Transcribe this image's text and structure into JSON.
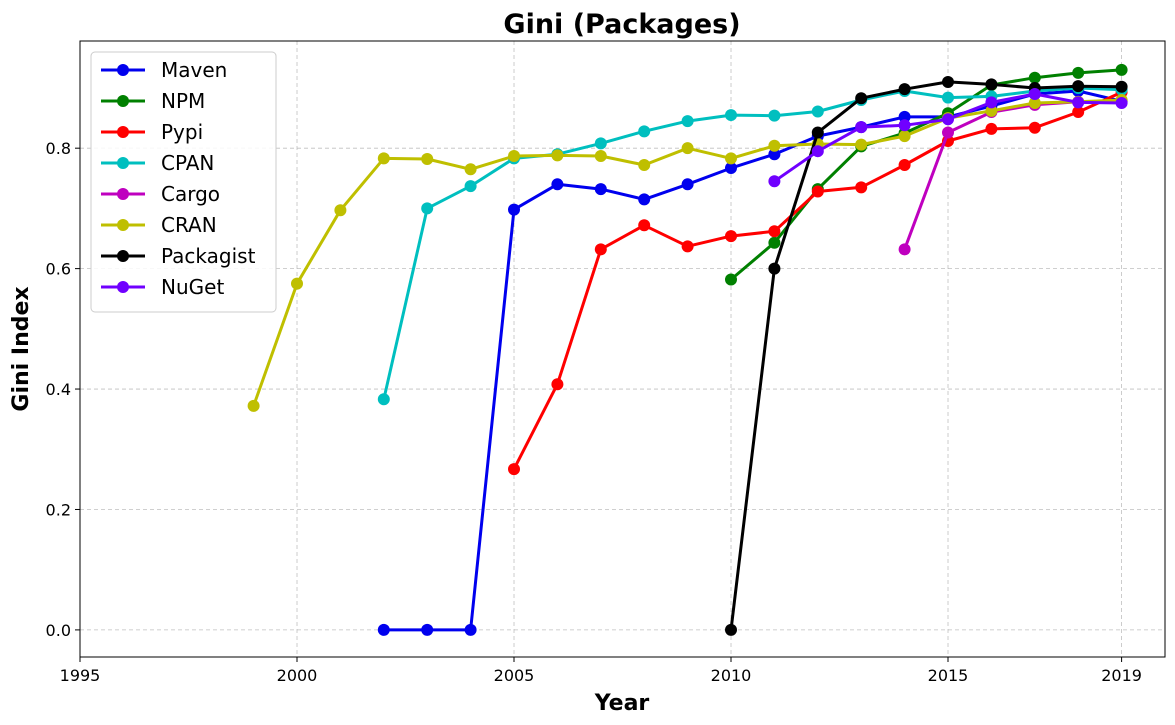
{
  "chart_data": {
    "type": "line",
    "title": "Gini (Packages)",
    "xlabel": "Year",
    "ylabel": "Gini Index",
    "xlim": [
      1995,
      2020
    ],
    "ylim": [
      -0.045,
      0.978
    ],
    "xticks": [
      1995,
      2000,
      2005,
      2010,
      2015,
      2019
    ],
    "yticks": [
      0.0,
      0.2,
      0.4,
      0.6,
      0.8
    ],
    "grid": true,
    "legend_position": "upper-left",
    "series": [
      {
        "name": "Maven",
        "color": "#0000ee",
        "points": [
          [
            2002,
            0.0
          ],
          [
            2003,
            0.0
          ],
          [
            2004,
            0.0
          ],
          [
            2005,
            0.698
          ],
          [
            2006,
            0.74
          ],
          [
            2007,
            0.732
          ],
          [
            2008,
            0.715
          ],
          [
            2009,
            0.74
          ],
          [
            2010,
            0.767
          ],
          [
            2011,
            0.79
          ],
          [
            2012,
            0.82
          ],
          [
            2013,
            0.835
          ],
          [
            2014,
            0.852
          ],
          [
            2015,
            0.852
          ],
          [
            2016,
            0.87
          ],
          [
            2017,
            0.89
          ],
          [
            2018,
            0.895
          ],
          [
            2019,
            0.878
          ]
        ]
      },
      {
        "name": "NPM",
        "color": "#008000",
        "points": [
          [
            2010,
            0.582
          ],
          [
            2011,
            0.643
          ],
          [
            2012,
            0.732
          ],
          [
            2013,
            0.803
          ],
          [
            2014,
            0.825
          ],
          [
            2015,
            0.858
          ],
          [
            2016,
            0.905
          ],
          [
            2017,
            0.917
          ],
          [
            2018,
            0.925
          ],
          [
            2019,
            0.93
          ]
        ]
      },
      {
        "name": "Pypi",
        "color": "#ff0000",
        "points": [
          [
            2005,
            0.267
          ],
          [
            2006,
            0.408
          ],
          [
            2007,
            0.632
          ],
          [
            2008,
            0.672
          ],
          [
            2009,
            0.637
          ],
          [
            2010,
            0.654
          ],
          [
            2011,
            0.662
          ],
          [
            2012,
            0.728
          ],
          [
            2013,
            0.735
          ],
          [
            2014,
            0.772
          ],
          [
            2015,
            0.812
          ],
          [
            2016,
            0.832
          ],
          [
            2017,
            0.834
          ],
          [
            2018,
            0.86
          ],
          [
            2019,
            0.893
          ]
        ]
      },
      {
        "name": "CPAN",
        "color": "#00bfbf",
        "points": [
          [
            2002,
            0.383
          ],
          [
            2003,
            0.7
          ],
          [
            2004,
            0.737
          ],
          [
            2005,
            0.783
          ],
          [
            2006,
            0.79
          ],
          [
            2007,
            0.808
          ],
          [
            2008,
            0.828
          ],
          [
            2009,
            0.845
          ],
          [
            2010,
            0.855
          ],
          [
            2011,
            0.854
          ],
          [
            2012,
            0.861
          ],
          [
            2013,
            0.88
          ],
          [
            2014,
            0.895
          ],
          [
            2015,
            0.884
          ],
          [
            2016,
            0.886
          ],
          [
            2017,
            0.895
          ],
          [
            2018,
            0.9
          ],
          [
            2019,
            0.897
          ]
        ]
      },
      {
        "name": "Cargo",
        "color": "#bf00bf",
        "points": [
          [
            2014,
            0.632
          ],
          [
            2015,
            0.826
          ],
          [
            2016,
            0.86
          ],
          [
            2017,
            0.872
          ],
          [
            2018,
            0.877
          ],
          [
            2019,
            0.878
          ]
        ]
      },
      {
        "name": "CRAN",
        "color": "#bfbf00",
        "points": [
          [
            1999,
            0.372
          ],
          [
            2000,
            0.575
          ],
          [
            2001,
            0.697
          ],
          [
            2002,
            0.783
          ],
          [
            2003,
            0.782
          ],
          [
            2004,
            0.765
          ],
          [
            2005,
            0.787
          ],
          [
            2006,
            0.788
          ],
          [
            2007,
            0.787
          ],
          [
            2008,
            0.772
          ],
          [
            2009,
            0.8
          ],
          [
            2010,
            0.783
          ],
          [
            2011,
            0.804
          ],
          [
            2012,
            0.807
          ],
          [
            2013,
            0.806
          ],
          [
            2014,
            0.82
          ],
          [
            2015,
            0.85
          ],
          [
            2016,
            0.862
          ],
          [
            2017,
            0.875
          ],
          [
            2018,
            0.877
          ],
          [
            2019,
            0.88
          ]
        ]
      },
      {
        "name": "Packagist",
        "color": "#000000",
        "points": [
          [
            2010,
            0.0
          ],
          [
            2011,
            0.6
          ],
          [
            2012,
            0.826
          ],
          [
            2013,
            0.883
          ],
          [
            2014,
            0.898
          ],
          [
            2015,
            0.91
          ],
          [
            2016,
            0.906
          ],
          [
            2017,
            0.9
          ],
          [
            2018,
            0.903
          ],
          [
            2019,
            0.902
          ]
        ]
      },
      {
        "name": "NuGet",
        "color": "#7000ff",
        "points": [
          [
            2011,
            0.745
          ],
          [
            2012,
            0.795
          ],
          [
            2013,
            0.835
          ],
          [
            2014,
            0.838
          ],
          [
            2015,
            0.848
          ],
          [
            2016,
            0.876
          ],
          [
            2017,
            0.89
          ],
          [
            2018,
            0.876
          ],
          [
            2019,
            0.875
          ]
        ]
      }
    ]
  }
}
